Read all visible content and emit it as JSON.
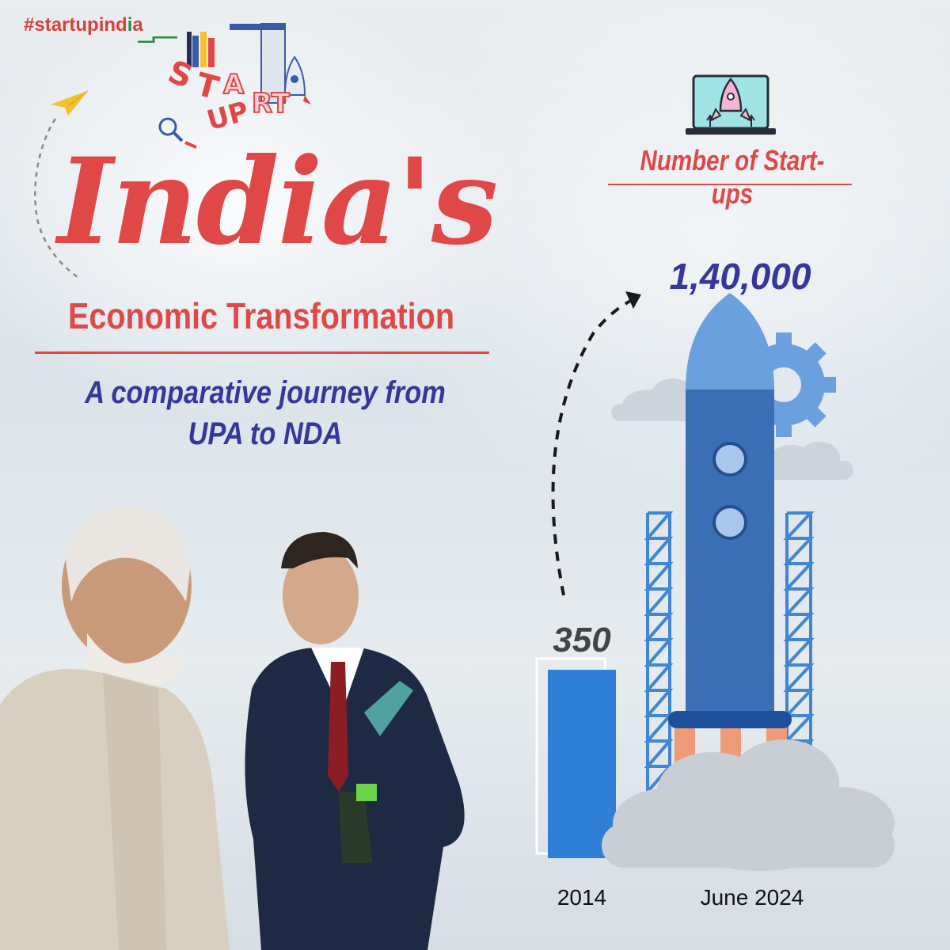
{
  "header": {
    "hashtag_prefix": "#startupind",
    "hashtag_i": "i",
    "hashtag_suffix": "a",
    "logo_text": "START UP"
  },
  "headline": {
    "title": "India's",
    "subtitle": "Economic Transformation",
    "tagline_line1": "A comparative journey from",
    "tagline_line2": "UPA to NDA"
  },
  "chart_data": {
    "type": "bar",
    "title": "Number of Start-ups",
    "categories": [
      "2014",
      "June 2024"
    ],
    "values": [
      350,
      140000
    ],
    "value_labels": [
      "350",
      "1,40,000"
    ],
    "xlabel": "",
    "ylabel": ""
  },
  "colors": {
    "accent_red": "#e04848",
    "accent_navy": "#35379a",
    "bar_blue": "#2f7fd6",
    "rocket_blue": "#3a6fb5",
    "rocket_light": "#6aa0dd",
    "flame": "#ef9a78",
    "green": "#2a8c3a"
  },
  "icons": [
    "paper-plane-icon",
    "laptop-rocket-icon",
    "rocket-icon",
    "gear-icon",
    "cloud-icon",
    "dashed-arrow-icon"
  ]
}
